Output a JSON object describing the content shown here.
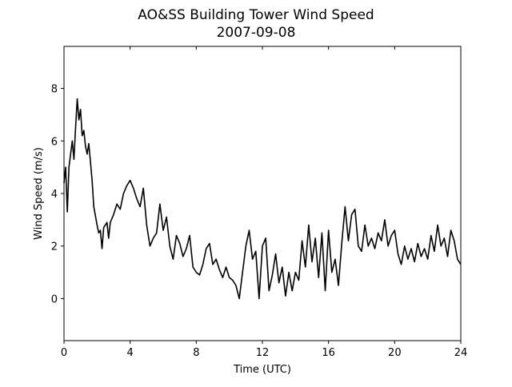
{
  "chart_data": {
    "type": "line",
    "title": "AO&SS Building Tower Wind Speed",
    "subtitle": "2007-09-08",
    "x_label": "Time (UTC)",
    "y_label": "Wind Speed (m/s)",
    "xlim": [
      0,
      24
    ],
    "xticks": [
      0,
      4,
      8,
      12,
      16,
      20,
      24
    ],
    "ylim": [
      -1.6,
      9.6
    ],
    "yticks": [
      0,
      2,
      4,
      6,
      8
    ],
    "x": [
      0,
      0.1,
      0.2,
      0.3,
      0.4,
      0.5,
      0.6,
      0.7,
      0.8,
      0.9,
      1.0,
      1.1,
      1.2,
      1.3,
      1.4,
      1.5,
      1.6,
      1.7,
      1.8,
      2.0,
      2.1,
      2.2,
      2.3,
      2.4,
      2.6,
      2.7,
      2.8,
      3.0,
      3.2,
      3.4,
      3.6,
      3.8,
      4.0,
      4.2,
      4.4,
      4.6,
      4.8,
      5.0,
      5.2,
      5.4,
      5.6,
      5.8,
      6.0,
      6.2,
      6.4,
      6.6,
      6.8,
      7.0,
      7.2,
      7.4,
      7.6,
      7.8,
      8.0,
      8.2,
      8.4,
      8.6,
      8.8,
      9.0,
      9.2,
      9.4,
      9.6,
      9.8,
      10.0,
      10.2,
      10.4,
      10.6,
      10.8,
      11.0,
      11.2,
      11.4,
      11.6,
      11.8,
      12.0,
      12.2,
      12.4,
      12.6,
      12.8,
      13.0,
      13.2,
      13.4,
      13.6,
      13.8,
      14.0,
      14.2,
      14.4,
      14.6,
      14.8,
      15.0,
      15.2,
      15.4,
      15.6,
      15.8,
      16.0,
      16.2,
      16.4,
      16.6,
      16.8,
      17.0,
      17.2,
      17.4,
      17.6,
      17.8,
      18.0,
      18.2,
      18.4,
      18.6,
      18.8,
      19.0,
      19.2,
      19.4,
      19.6,
      19.8,
      20.0,
      20.2,
      20.4,
      20.6,
      20.8,
      21.0,
      21.2,
      21.4,
      21.6,
      21.8,
      22.0,
      22.2,
      22.4,
      22.6,
      22.8,
      23.0,
      23.2,
      23.4,
      23.6,
      23.8,
      24.0
    ],
    "series": [
      {
        "name": "Wind Speed",
        "color": "#000000",
        "values": [
          4.4,
          5.0,
          3.3,
          5.0,
          5.5,
          6.0,
          5.3,
          6.5,
          7.6,
          6.8,
          7.2,
          6.2,
          6.4,
          5.8,
          5.5,
          5.9,
          5.2,
          4.5,
          3.5,
          2.8,
          2.5,
          2.6,
          1.9,
          2.7,
          2.9,
          2.3,
          2.9,
          3.2,
          3.6,
          3.4,
          4.0,
          4.3,
          4.5,
          4.2,
          3.8,
          3.5,
          4.2,
          2.8,
          2.0,
          2.3,
          2.5,
          3.6,
          2.6,
          3.1,
          2.0,
          1.5,
          2.4,
          2.1,
          1.6,
          1.9,
          2.4,
          1.2,
          1.0,
          0.9,
          1.3,
          1.9,
          2.1,
          1.3,
          1.5,
          1.1,
          0.8,
          1.2,
          0.8,
          0.7,
          0.5,
          0.0,
          1.0,
          2.0,
          2.6,
          1.5,
          1.8,
          0.0,
          2.0,
          2.3,
          0.3,
          0.9,
          1.7,
          0.6,
          1.2,
          0.1,
          1.0,
          0.3,
          1.0,
          0.7,
          2.2,
          1.2,
          2.8,
          1.4,
          2.3,
          0.8,
          2.5,
          0.3,
          2.6,
          1.0,
          1.5,
          0.5,
          2.1,
          3.5,
          2.2,
          3.2,
          3.4,
          2.0,
          1.8,
          2.8,
          2.0,
          2.3,
          1.9,
          2.5,
          2.2,
          3.0,
          2.0,
          2.4,
          2.6,
          1.7,
          1.3,
          2.0,
          1.5,
          1.9,
          1.4,
          2.1,
          1.6,
          1.9,
          1.5,
          2.4,
          1.8,
          2.8,
          2.0,
          2.3,
          1.6,
          2.6,
          2.2,
          1.5,
          1.3
        ]
      }
    ]
  }
}
